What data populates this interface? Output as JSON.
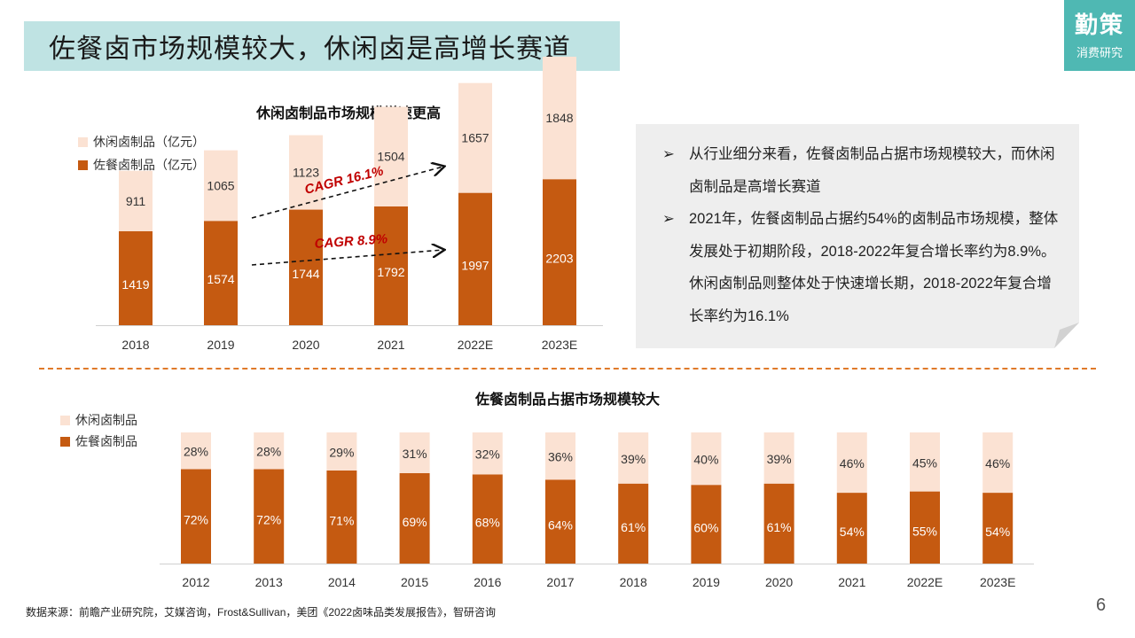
{
  "header": {
    "title": "佐餐卤市场规模较大，休闲卤是高增长赛道"
  },
  "logo": {
    "line1": "勤策",
    "line2": "消费研究"
  },
  "colors": {
    "light": "#fbe2d3",
    "dark": "#c55a11",
    "teal": "#4fb8b3",
    "title_bg": "#bfe3e3"
  },
  "top_chart": {
    "title": "休闲卤制品市场规模增速更高",
    "legend": [
      "休闲卤制品（亿元）",
      "佐餐卤制品（亿元）"
    ],
    "cagr_upper": "CAGR 16.1%",
    "cagr_lower": "CAGR 8.9%"
  },
  "bottom_chart": {
    "title": "佐餐卤制品占据市场规模较大",
    "legend": [
      "休闲卤制品",
      "佐餐卤制品"
    ]
  },
  "chart_data": [
    {
      "type": "bar",
      "stacked": true,
      "title": "休闲卤制品市场规模增速更高",
      "categories": [
        "2018",
        "2019",
        "2020",
        "2021",
        "2022E",
        "2023E"
      ],
      "series": [
        {
          "name": "佐餐卤制品（亿元）",
          "values": [
            1419,
            1574,
            1744,
            1792,
            1997,
            2203
          ],
          "color": "#c55a11"
        },
        {
          "name": "休闲卤制品（亿元）",
          "values": [
            911,
            1065,
            1123,
            1504,
            1657,
            1848
          ],
          "color": "#fbe2d3"
        }
      ],
      "ylim": [
        0,
        4100
      ],
      "annotations": [
        "CAGR 16.1%",
        "CAGR 8.9%"
      ],
      "legend_position": "top-left",
      "grid": false
    },
    {
      "type": "bar",
      "stacked": true,
      "percent": true,
      "title": "佐餐卤制品占据市场规模较大",
      "categories": [
        "2012",
        "2013",
        "2014",
        "2015",
        "2016",
        "2017",
        "2018",
        "2019",
        "2020",
        "2021",
        "2022E",
        "2023E"
      ],
      "series": [
        {
          "name": "佐餐卤制品",
          "values": [
            72,
            72,
            71,
            69,
            68,
            64,
            61,
            60,
            61,
            54,
            55,
            54
          ],
          "color": "#c55a11"
        },
        {
          "name": "休闲卤制品",
          "values": [
            28,
            28,
            29,
            31,
            32,
            36,
            39,
            40,
            39,
            46,
            45,
            46
          ],
          "color": "#fbe2d3"
        }
      ],
      "ylim": [
        0,
        100
      ],
      "legend_position": "top-left",
      "grid": false
    }
  ],
  "notes": [
    "从行业细分来看，佐餐卤制品占据市场规模较大，而休闲卤制品是高增长赛道",
    "2021年，佐餐卤制品占据约54%的卤制品市场规模，整体发展处于初期阶段，2018-2022年复合增长率约为8.9%。休闲卤制品则整体处于快速增长期，2018-2022年复合增长率约为16.1%"
  ],
  "footer": {
    "source": "数据来源：前瞻产业研究院，艾媒咨询，Frost&Sullivan，美团《2022卤味品类发展报告》，智研咨询",
    "page": "6"
  }
}
